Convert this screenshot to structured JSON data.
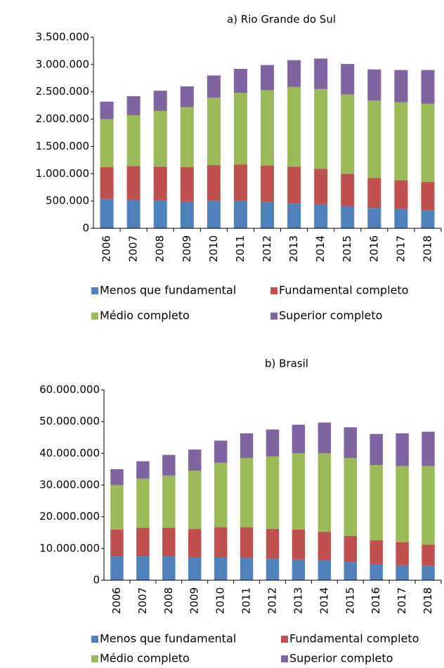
{
  "chart_data": [
    {
      "type": "stacked_bar",
      "title": "a) Rio Grande do Sul",
      "categories": [
        "2006",
        "2007",
        "2008",
        "2009",
        "2010",
        "2011",
        "2012",
        "2013",
        "2014",
        "2015",
        "2016",
        "2017",
        "2018"
      ],
      "series": [
        {
          "name": "Menos que fundamental",
          "color": "#4f81bd",
          "values": [
            530000,
            520000,
            510000,
            490000,
            500000,
            500000,
            480000,
            460000,
            440000,
            400000,
            370000,
            350000,
            330000
          ]
        },
        {
          "name": "Fundamental completo",
          "color": "#c0504d",
          "values": [
            590000,
            620000,
            620000,
            630000,
            660000,
            670000,
            670000,
            670000,
            650000,
            600000,
            550000,
            530000,
            520000
          ]
        },
        {
          "name": "Médio completo",
          "color": "#9bbb59",
          "values": [
            880000,
            930000,
            1020000,
            1100000,
            1230000,
            1310000,
            1380000,
            1460000,
            1460000,
            1450000,
            1420000,
            1430000,
            1430000
          ]
        },
        {
          "name": "Superior completo",
          "color": "#8064a2",
          "values": [
            320000,
            350000,
            370000,
            380000,
            410000,
            440000,
            460000,
            490000,
            560000,
            560000,
            570000,
            590000,
            620000
          ]
        }
      ],
      "ylim": [
        0,
        3500000
      ],
      "yticks": [
        0,
        {
          "value": 500000,
          "label": "500.000"
        },
        {
          "value": 1000000,
          "label": "1.000.000"
        },
        {
          "value": 1500000,
          "label": "1.500.000"
        },
        {
          "value": 2000000,
          "label": "2.000.000"
        },
        {
          "value": 2500000,
          "label": "2.500.000"
        },
        {
          "value": 3000000,
          "label": "3.000.000"
        },
        {
          "value": 3500000,
          "label": "3.500.000"
        }
      ],
      "legend": "bottom"
    },
    {
      "type": "stacked_bar",
      "title": "b) Brasil",
      "categories": [
        "2006",
        "2007",
        "2008",
        "2009",
        "2010",
        "2011",
        "2012",
        "2013",
        "2014",
        "2015",
        "2016",
        "2017",
        "2018"
      ],
      "series": [
        {
          "name": "Menos que fundamental",
          "color": "#4f81bd",
          "values": [
            7500000,
            7500000,
            7500000,
            7300000,
            7300000,
            7200000,
            6800000,
            6500000,
            6200000,
            5700000,
            5000000,
            4700000,
            4500000
          ]
        },
        {
          "name": "Fundamental completo",
          "color": "#c0504d",
          "values": [
            8500000,
            9000000,
            9000000,
            8900000,
            9400000,
            9500000,
            9400000,
            9500000,
            9100000,
            8300000,
            7600000,
            7300000,
            6700000
          ]
        },
        {
          "name": "Médio completo",
          "color": "#9bbb59",
          "values": [
            14000000,
            15500000,
            16500000,
            18300000,
            20300000,
            21800000,
            22800000,
            24000000,
            24700000,
            24500000,
            23700000,
            24000000,
            24800000
          ]
        },
        {
          "name": "Superior completo",
          "color": "#8064a2",
          "values": [
            5000000,
            5500000,
            6500000,
            6700000,
            7000000,
            7800000,
            8500000,
            9000000,
            9700000,
            9700000,
            9800000,
            10300000,
            10800000
          ]
        }
      ],
      "ylim": [
        0,
        60000000
      ],
      "yticks": [
        0,
        {
          "value": 10000000,
          "label": "10.000.000"
        },
        {
          "value": 20000000,
          "label": "20.000.000"
        },
        {
          "value": 30000000,
          "label": "30.000.000"
        },
        {
          "value": 40000000,
          "label": "40.000.000"
        },
        {
          "value": 50000000,
          "label": "50.000.000"
        },
        {
          "value": 60000000,
          "label": "60.000.000"
        }
      ],
      "legend": "bottom"
    }
  ]
}
